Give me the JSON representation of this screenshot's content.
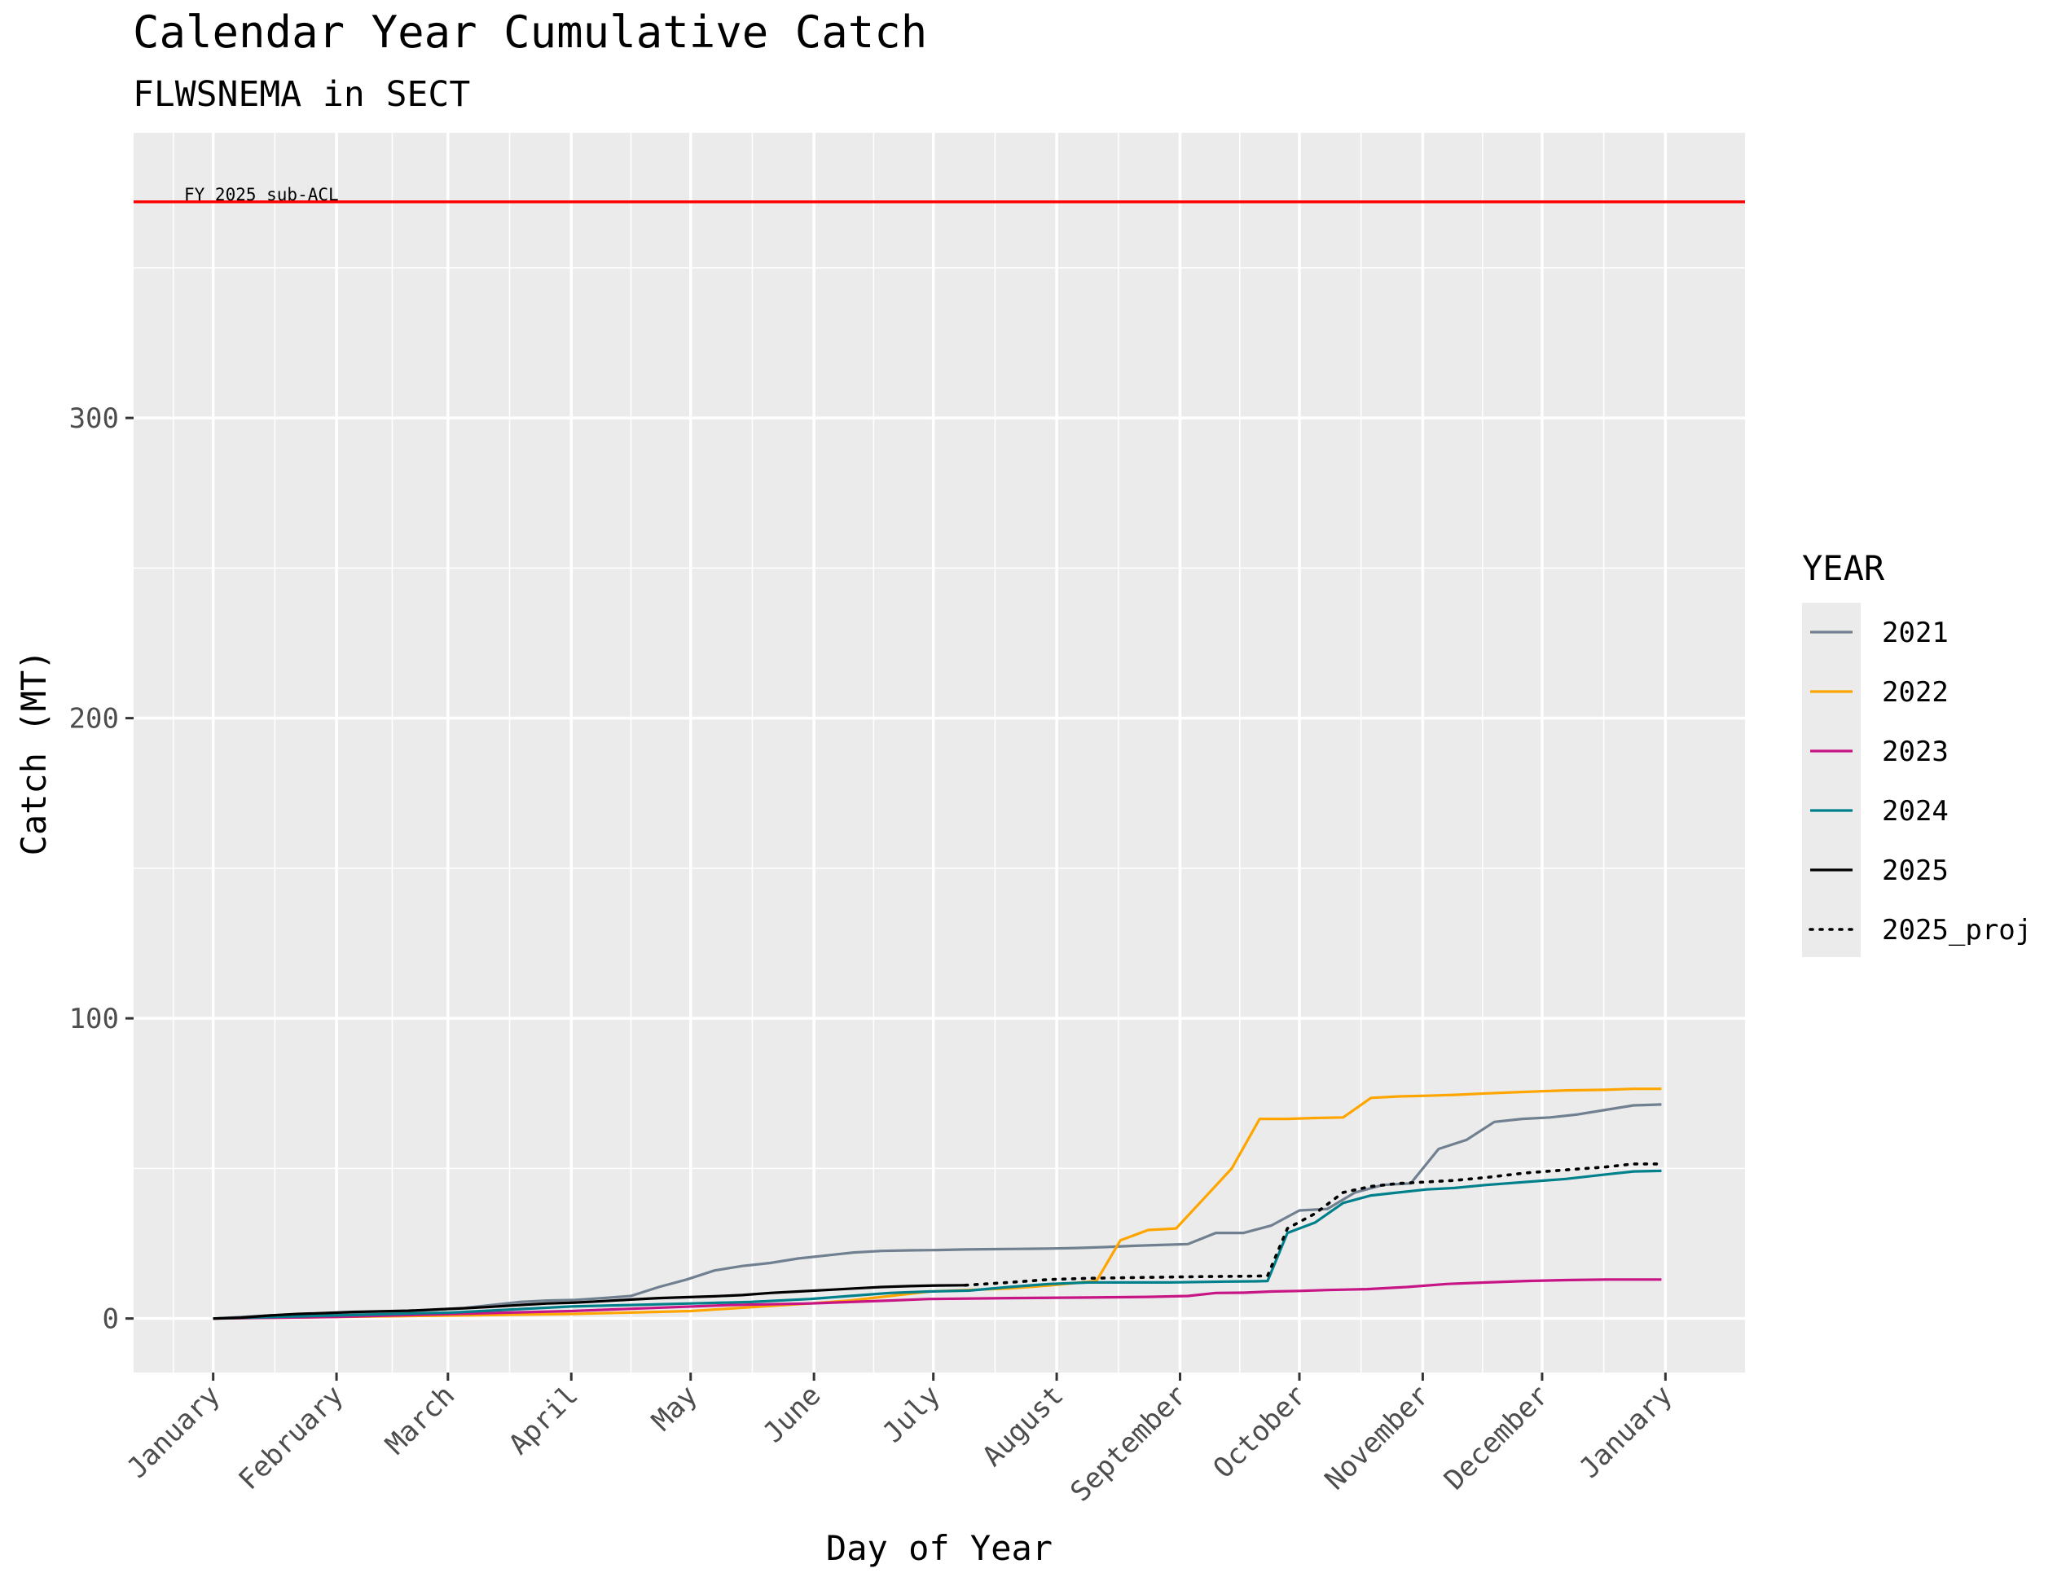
{
  "chart_data": {
    "type": "line",
    "title": "Calendar Year Cumulative Catch",
    "subtitle": "FLWSNEMA in SECT",
    "xlabel": "Day of Year",
    "ylabel": "Catch (MT)",
    "xlim": [
      -20,
      385
    ],
    "ylim": [
      -18,
      395
    ],
    "y_ticks": [
      0,
      100,
      200,
      300
    ],
    "x_ticks": [
      {
        "day": 0,
        "label": "January"
      },
      {
        "day": 31,
        "label": "February"
      },
      {
        "day": 59,
        "label": "March"
      },
      {
        "day": 90,
        "label": "April"
      },
      {
        "day": 120,
        "label": "May"
      },
      {
        "day": 151,
        "label": "June"
      },
      {
        "day": 181,
        "label": "July"
      },
      {
        "day": 212,
        "label": "August"
      },
      {
        "day": 243,
        "label": "September"
      },
      {
        "day": 273,
        "label": "October"
      },
      {
        "day": 304,
        "label": "November"
      },
      {
        "day": 334,
        "label": "December"
      },
      {
        "day": 365,
        "label": "January"
      }
    ],
    "grid": true,
    "legend": {
      "title": "YEAR",
      "position": "right"
    },
    "reference_line": {
      "value": 372,
      "label": "FY 2025 sub-ACL",
      "color": "#ff0000"
    },
    "series": [
      {
        "name": "2021",
        "color": "#708090",
        "dash": "solid",
        "x": [
          0,
          7,
          14,
          21,
          28,
          35,
          42,
          49,
          56,
          63,
          70,
          77,
          84,
          91,
          98,
          105,
          112,
          119,
          126,
          133,
          140,
          147,
          154,
          161,
          168,
          175,
          182,
          189,
          196,
          203,
          210,
          217,
          224,
          231,
          238,
          245,
          252,
          259,
          266,
          273,
          280,
          287,
          294,
          301,
          308,
          315,
          322,
          329,
          336,
          343,
          350,
          357,
          364
        ],
        "y": [
          0,
          0.5,
          1,
          1.3,
          1.6,
          1.8,
          2,
          2.3,
          3,
          3.5,
          4.5,
          5.5,
          6,
          6.2,
          6.8,
          7.5,
          10.5,
          13,
          16,
          17.5,
          18.5,
          20,
          21,
          22,
          22.5,
          22.7,
          22.8,
          23,
          23.1,
          23.2,
          23.3,
          23.5,
          23.8,
          24.2,
          24.5,
          24.8,
          28.5,
          28.5,
          31,
          36,
          36.5,
          42,
          44.5,
          45,
          56.5,
          59.5,
          65.5,
          66.5,
          67,
          68,
          69.5,
          71,
          71.3
        ]
      },
      {
        "name": "2022",
        "color": "#ffa500",
        "dash": "solid",
        "x": [
          0,
          10,
          30,
          60,
          90,
          120,
          150,
          160,
          180,
          200,
          210,
          222,
          228,
          235,
          242,
          249,
          256,
          263,
          270,
          277,
          284,
          291,
          298,
          305,
          312,
          320,
          330,
          340,
          350,
          357,
          364
        ],
        "y": [
          0,
          0.2,
          0.5,
          1,
          1.5,
          2.5,
          5,
          6,
          9,
          10,
          11,
          12.5,
          26,
          29.5,
          30,
          40,
          50,
          66.5,
          66.5,
          66.8,
          67,
          73.5,
          74,
          74.2,
          74.5,
          75,
          75.5,
          76,
          76.2,
          76.5,
          76.5
        ]
      },
      {
        "name": "2023",
        "color": "#c71585",
        "dash": "solid",
        "x": [
          0,
          30,
          60,
          90,
          110,
          130,
          150,
          170,
          180,
          200,
          220,
          235,
          245,
          252,
          259,
          266,
          273,
          280,
          290,
          300,
          310,
          320,
          330,
          340,
          350,
          357,
          364
        ],
        "y": [
          0,
          0.5,
          1.5,
          2.5,
          3.5,
          4.5,
          5,
          6,
          6.5,
          6.8,
          7,
          7.2,
          7.5,
          8.5,
          8.6,
          9,
          9.2,
          9.5,
          9.8,
          10.5,
          11.5,
          12,
          12.5,
          12.8,
          13,
          13,
          13
        ]
      },
      {
        "name": "2024",
        "color": "#00808b",
        "dash": "solid",
        "x": [
          0,
          15,
          30,
          45,
          60,
          75,
          90,
          105,
          120,
          135,
          150,
          160,
          170,
          180,
          190,
          200,
          210,
          220,
          230,
          240,
          250,
          255,
          262,
          265,
          270,
          277,
          284,
          291,
          298,
          305,
          312,
          320,
          330,
          340,
          350,
          357,
          364
        ],
        "y": [
          0,
          0.5,
          1,
          1.5,
          2,
          3,
          4,
          4.5,
          5,
          5.5,
          6.5,
          7.5,
          8.5,
          9,
          9.3,
          10.5,
          11.5,
          12,
          12,
          12,
          12.2,
          12.3,
          12.4,
          12.5,
          28.5,
          32,
          38.5,
          41,
          42,
          43,
          43.5,
          44.5,
          45.5,
          46.5,
          48,
          49,
          49.2
        ]
      },
      {
        "name": "2025",
        "color": "#000000",
        "dash": "solid",
        "x": [
          0,
          7,
          14,
          21,
          28,
          35,
          42,
          49,
          56,
          63,
          70,
          77,
          84,
          91,
          98,
          105,
          112,
          119,
          126,
          133,
          140,
          147,
          154,
          161,
          168,
          175,
          182,
          189
        ],
        "y": [
          0,
          0.3,
          1,
          1.5,
          1.8,
          2.2,
          2.4,
          2.6,
          3,
          3.4,
          3.9,
          4.5,
          5,
          5.3,
          5.8,
          6.3,
          6.8,
          7.1,
          7.4,
          7.8,
          8.5,
          9,
          9.5,
          10,
          10.5,
          10.8,
          11,
          11.1
        ]
      },
      {
        "name": "2025_proj",
        "color": "#000000",
        "dash": "dotted",
        "x": [
          189,
          200,
          210,
          220,
          230,
          240,
          250,
          260,
          265,
          270,
          277,
          284,
          291,
          298,
          305,
          312,
          320,
          330,
          340,
          350,
          357,
          364
        ],
        "y": [
          11.1,
          12,
          13,
          13.4,
          13.6,
          13.8,
          14,
          14.1,
          14.2,
          30,
          35,
          42,
          44,
          45,
          45.5,
          46,
          47,
          48.5,
          49.5,
          50.5,
          51.5,
          51.5
        ]
      }
    ]
  }
}
